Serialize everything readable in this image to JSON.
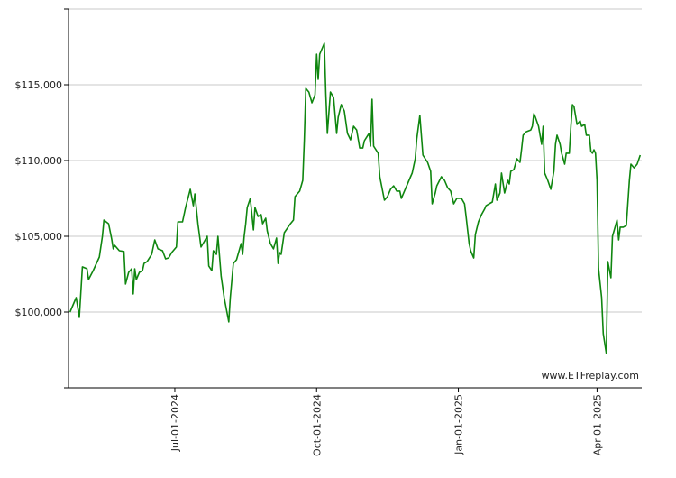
{
  "chart_data": {
    "type": "line",
    "watermark": "www.ETFreplay.com",
    "grid": true,
    "color": "#0f860f",
    "xlim": [
      "2024-04-23",
      "2025-04-30"
    ],
    "xticks": [
      {
        "value": "2024-07-01",
        "label": "Jul-01-2024"
      },
      {
        "value": "2024-10-01",
        "label": "Oct-01-2024"
      },
      {
        "value": "2025-01-01",
        "label": "Jan-01-2025"
      },
      {
        "value": "2025-04-01",
        "label": "Apr-01-2025"
      }
    ],
    "ylim": [
      95000,
      120000
    ],
    "yticks": [
      {
        "value": 100000,
        "label": "$100,000"
      },
      {
        "value": 105000,
        "label": "$105,000"
      },
      {
        "value": 110000,
        "label": "$110,000"
      },
      {
        "value": 115000,
        "label": "$115,000"
      }
    ],
    "x": [
      "2024-04-24",
      "2024-04-28",
      "2024-04-30",
      "2024-05-02",
      "2024-05-05",
      "2024-05-06",
      "2024-05-09",
      "2024-05-13",
      "2024-05-15",
      "2024-05-16",
      "2024-05-19",
      "2024-05-21",
      "2024-05-22",
      "2024-05-23",
      "2024-05-26",
      "2024-05-29",
      "2024-05-30",
      "2024-06-01",
      "2024-06-03",
      "2024-06-04",
      "2024-06-05",
      "2024-06-06",
      "2024-06-08",
      "2024-06-10",
      "2024-06-11",
      "2024-06-13",
      "2024-06-16",
      "2024-06-18",
      "2024-06-20",
      "2024-06-23",
      "2024-06-25",
      "2024-06-27",
      "2024-06-29",
      "2024-07-02",
      "2024-07-03",
      "2024-07-06",
      "2024-07-08",
      "2024-07-11",
      "2024-07-13",
      "2024-07-14",
      "2024-07-16",
      "2024-07-18",
      "2024-07-20",
      "2024-07-22",
      "2024-07-23",
      "2024-07-25",
      "2024-07-26",
      "2024-07-28",
      "2024-07-29",
      "2024-07-31",
      "2024-08-02",
      "2024-08-05",
      "2024-08-06",
      "2024-08-08",
      "2024-08-10",
      "2024-08-13",
      "2024-08-14",
      "2024-08-15",
      "2024-08-16",
      "2024-08-17",
      "2024-08-19",
      "2024-08-21",
      "2024-08-22",
      "2024-08-24",
      "2024-08-26",
      "2024-08-27",
      "2024-08-29",
      "2024-08-30",
      "2024-09-01",
      "2024-09-03",
      "2024-09-05",
      "2024-09-06",
      "2024-09-07",
      "2024-09-08",
      "2024-09-10",
      "2024-09-14",
      "2024-09-16",
      "2024-09-17",
      "2024-09-20",
      "2024-09-22",
      "2024-09-23",
      "2024-09-24",
      "2024-09-26",
      "2024-09-28",
      "2024-09-30",
      "2024-10-01",
      "2024-10-02",
      "2024-10-03",
      "2024-10-06",
      "2024-10-07",
      "2024-10-08",
      "2024-10-10",
      "2024-10-12",
      "2024-10-14",
      "2024-10-15",
      "2024-10-17",
      "2024-10-19",
      "2024-10-21",
      "2024-10-23",
      "2024-10-25",
      "2024-10-27",
      "2024-10-29",
      "2024-10-31",
      "2024-11-01",
      "2024-11-04",
      "2024-11-05",
      "2024-11-06",
      "2024-11-07",
      "2024-11-10",
      "2024-11-11",
      "2024-11-14",
      "2024-11-16",
      "2024-11-18",
      "2024-11-20",
      "2024-11-22",
      "2024-11-24",
      "2024-11-25",
      "2024-11-27",
      "2024-11-29",
      "2024-12-01",
      "2024-12-02",
      "2024-12-04",
      "2024-12-05",
      "2024-12-07",
      "2024-12-09",
      "2024-12-12",
      "2024-12-14",
      "2024-12-15",
      "2024-12-17",
      "2024-12-18",
      "2024-12-21",
      "2024-12-23",
      "2024-12-25",
      "2024-12-27",
      "2024-12-29",
      "2024-12-31",
      "2025-01-03",
      "2025-01-05",
      "2025-01-06",
      "2025-01-08",
      "2025-01-09",
      "2025-01-11",
      "2025-01-12",
      "2025-01-14",
      "2025-01-16",
      "2025-01-18",
      "2025-01-19",
      "2025-01-21",
      "2025-01-23",
      "2025-01-25",
      "2025-01-26",
      "2025-01-28",
      "2025-01-29",
      "2025-01-31",
      "2025-02-02",
      "2025-02-03",
      "2025-02-04",
      "2025-02-06",
      "2025-02-08",
      "2025-02-10",
      "2025-02-11",
      "2025-02-12",
      "2025-02-14",
      "2025-02-17",
      "2025-02-18",
      "2025-02-19",
      "2025-02-20",
      "2025-02-22",
      "2025-02-24",
      "2025-02-25",
      "2025-02-26",
      "2025-02-28",
      "2025-03-02",
      "2025-03-04",
      "2025-03-05",
      "2025-03-06",
      "2025-03-08",
      "2025-03-09",
      "2025-03-11",
      "2025-03-12",
      "2025-03-14",
      "2025-03-15",
      "2025-03-16",
      "2025-03-17",
      "2025-03-19",
      "2025-03-21",
      "2025-03-22",
      "2025-03-24",
      "2025-03-25",
      "2025-03-27",
      "2025-03-28",
      "2025-03-29",
      "2025-03-30",
      "2025-03-31",
      "2025-04-01",
      "2025-04-02",
      "2025-04-04",
      "2025-04-05",
      "2025-04-07",
      "2025-04-08",
      "2025-04-10",
      "2025-04-11",
      "2025-04-13",
      "2025-04-14",
      "2025-04-15",
      "2025-04-16",
      "2025-04-18",
      "2025-04-20",
      "2025-04-22",
      "2025-04-23",
      "2025-04-25",
      "2025-04-27",
      "2025-04-29"
    ],
    "values": [
      100000,
      100950,
      99640,
      102980,
      102860,
      102140,
      102740,
      103630,
      105000,
      106070,
      105830,
      104820,
      104170,
      104400,
      104050,
      104000,
      101850,
      102620,
      102860,
      101190,
      102860,
      102140,
      102620,
      102740,
      103210,
      103330,
      103810,
      104760,
      104170,
      104050,
      103510,
      103570,
      103930,
      104290,
      105950,
      105950,
      106900,
      108100,
      107020,
      107800,
      105830,
      104290,
      104640,
      105000,
      103040,
      102740,
      104050,
      103810,
      105000,
      102380,
      100950,
      99350,
      100950,
      103210,
      103450,
      104520,
      103810,
      105000,
      105830,
      106900,
      107500,
      105420,
      106900,
      106310,
      106430,
      105830,
      106190,
      105360,
      104520,
      104170,
      104880,
      103210,
      103930,
      103810,
      105240,
      105830,
      106070,
      107620,
      107980,
      108690,
      111310,
      114760,
      114520,
      113810,
      114340,
      117020,
      115360,
      117020,
      117740,
      114400,
      111790,
      114520,
      114170,
      111790,
      112860,
      113690,
      113270,
      111790,
      111370,
      112260,
      112020,
      110830,
      110830,
      111310,
      111790,
      110950,
      114050,
      110950,
      110480,
      108930,
      107380,
      107620,
      108100,
      108330,
      107980,
      107980,
      107500,
      107980,
      108450,
      108930,
      109170,
      110120,
      111430,
      112980,
      110360,
      109880,
      109290,
      107140,
      107860,
      108330,
      108930,
      108690,
      108210,
      107980,
      107140,
      107500,
      107500,
      107140,
      106310,
      104520,
      104050,
      103570,
      105120,
      105950,
      106430,
      106790,
      107020,
      107140,
      107260,
      108450,
      107380,
      107860,
      109170,
      107860,
      108690,
      108450,
      109290,
      109400,
      110120,
      109880,
      110710,
      111670,
      111900,
      112020,
      112260,
      113090,
      112860,
      112260,
      111070,
      112260,
      109170,
      108690,
      108100,
      109290,
      111070,
      111670,
      111070,
      110480,
      109760,
      110480,
      110480,
      112260,
      113690,
      113570,
      112380,
      112620,
      112260,
      112380,
      111670,
      111670,
      110600,
      110480,
      110710,
      110480,
      108690,
      102860,
      100950,
      98570,
      97260,
      103330,
      102260,
      105000,
      105710,
      106070,
      104760,
      105600,
      105600,
      105710,
      108690,
      109760,
      109520,
      109760,
      110360
    ]
  }
}
